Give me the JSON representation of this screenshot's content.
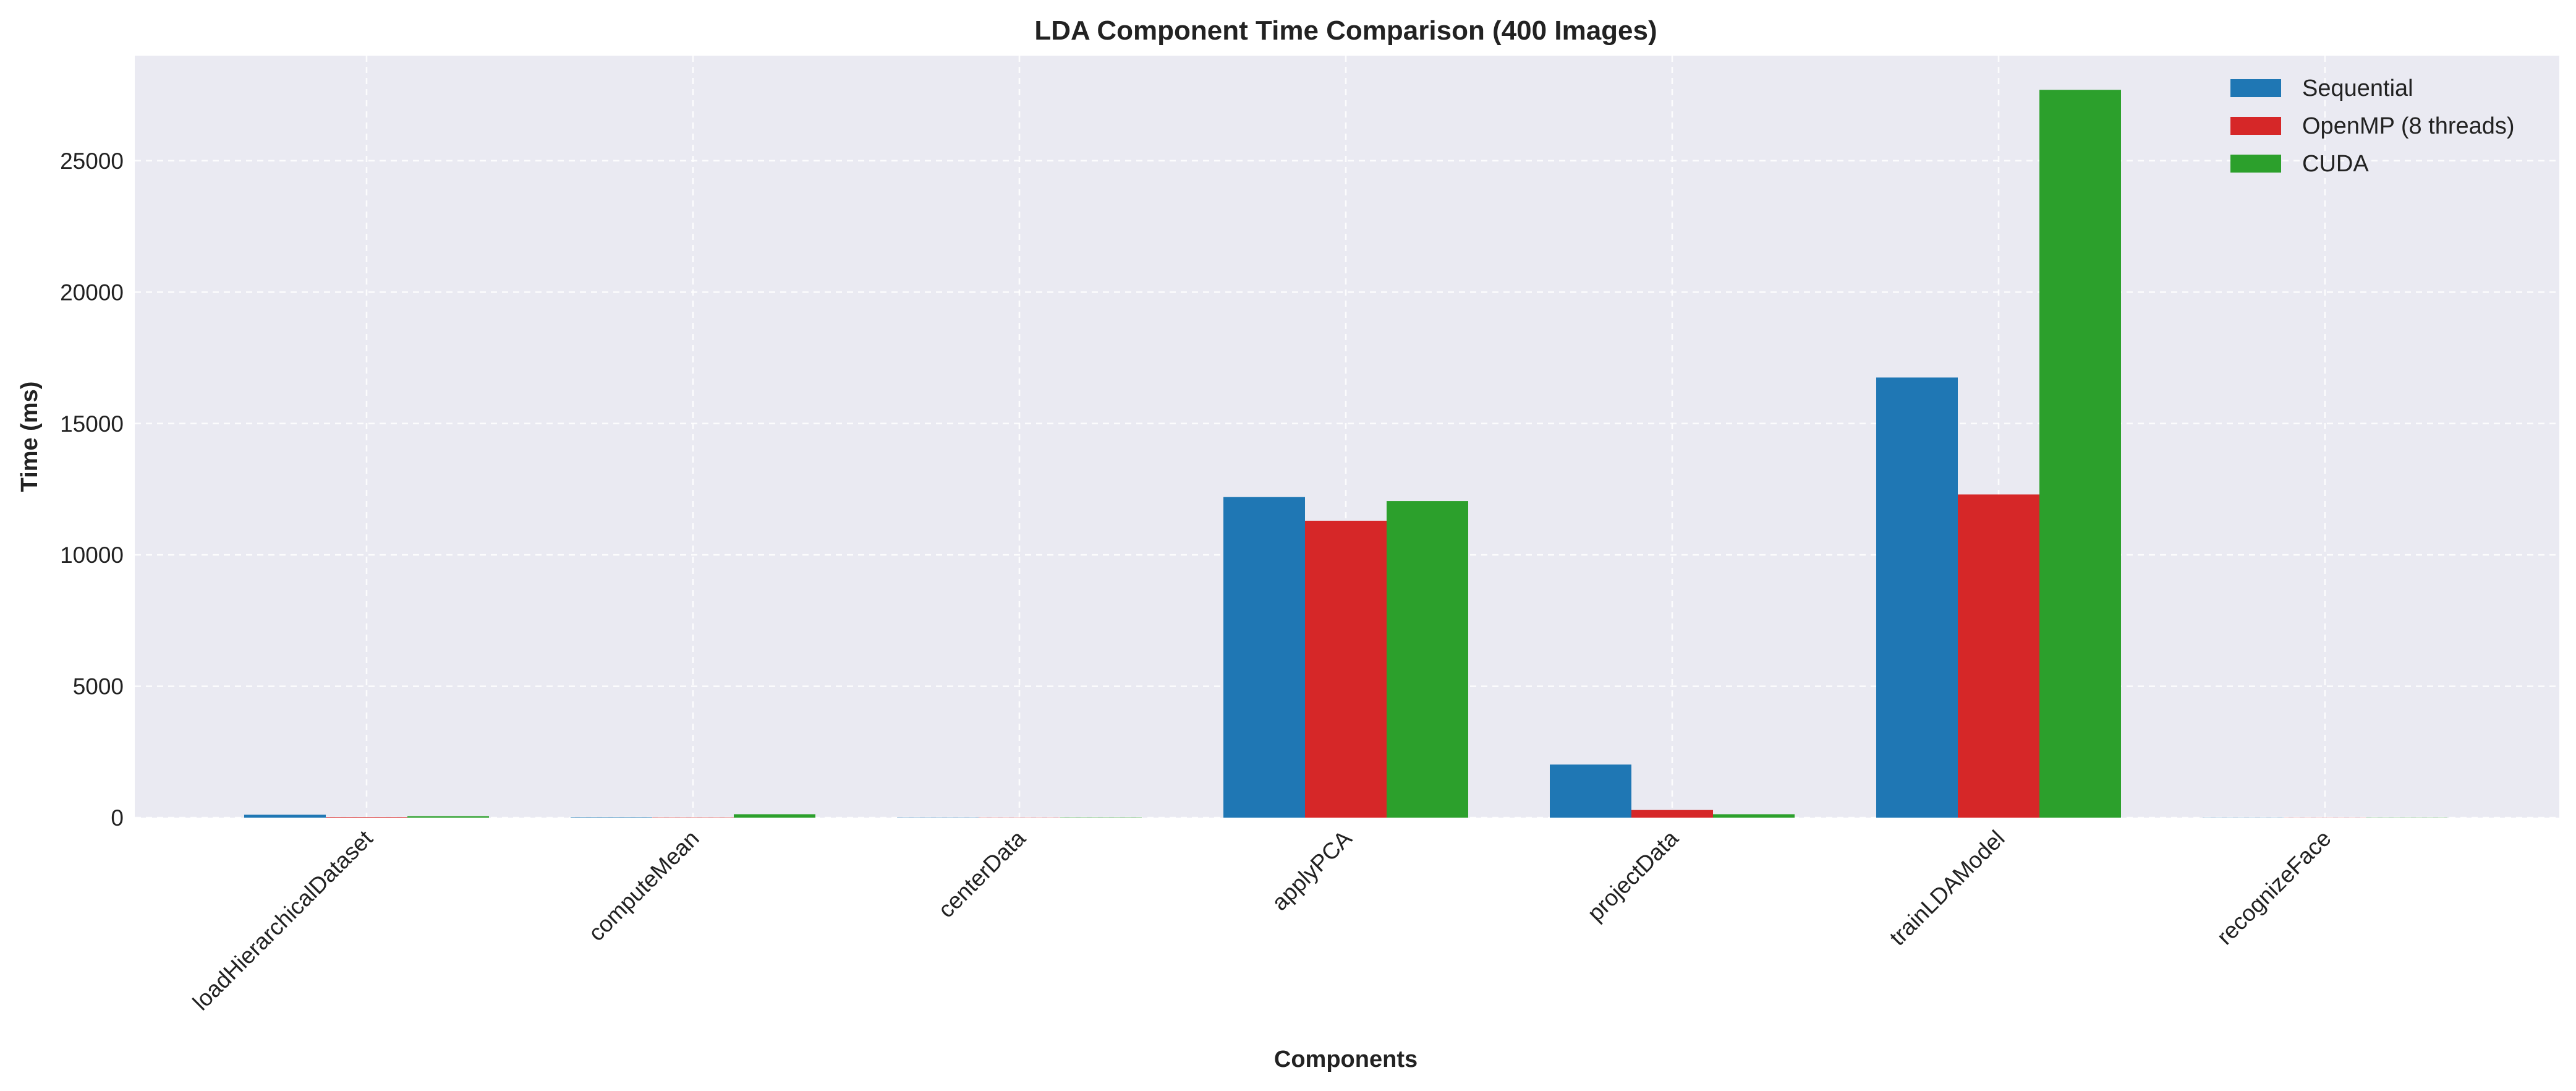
{
  "chart_data": {
    "type": "bar",
    "title": "LDA Component Time Comparison (400 Images)",
    "xlabel": "Components",
    "ylabel": "Time (ms)",
    "categories": [
      "loadHierarchicalDataset",
      "computeMean",
      "centerData",
      "applyPCA",
      "projectData",
      "trainLDAModel",
      "recognizeFace"
    ],
    "series": [
      {
        "name": "Sequential",
        "color": "#1f77b4",
        "values": [
          110,
          15,
          8,
          12200,
          2020,
          16750,
          5
        ]
      },
      {
        "name": "OpenMP (8 threads)",
        "color": "#d62728",
        "values": [
          20,
          10,
          6,
          11300,
          290,
          12300,
          4
        ]
      },
      {
        "name": "CUDA",
        "color": "#2ca02c",
        "values": [
          55,
          130,
          10,
          12050,
          130,
          27700,
          6
        ]
      }
    ],
    "ylim": [
      0,
      29000
    ],
    "yticks": [
      0,
      5000,
      10000,
      15000,
      20000,
      25000
    ],
    "grid": true,
    "legend_position": "top-right",
    "plot_background": "#eaeaf2"
  }
}
